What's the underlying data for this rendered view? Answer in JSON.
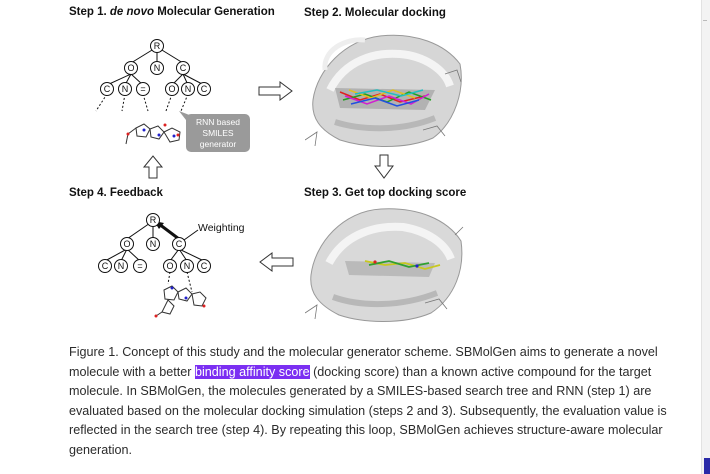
{
  "figure": {
    "step1": {
      "prefix": "Step 1. ",
      "italic": "de novo",
      "suffix": " Molecular Generation"
    },
    "step2": "Step 2. Molecular docking",
    "step3": "Step 3. Get top docking score",
    "step4": "Step 4. Feedback",
    "tree_nodes": {
      "root": "R",
      "o": "O",
      "n": "N",
      "c": "C",
      "eq": "="
    },
    "rnn_box": [
      "RNN based",
      "SMILES",
      "generator"
    ],
    "weighting": "Weighting"
  },
  "caption": {
    "before": "Figure 1. Concept of this study and the molecular generator scheme. SBMolGen aims to generate a novel molecule with a better ",
    "highlight": "binding affinity score",
    "after": " (docking score) than a known active compound for the target molecule. In SBMolGen, the molecules generated by a SMILES-based search tree and RNN (step 1) are evaluated based on the molecular docking simulation (steps 2 and 3). Subsequently, the evaluation value is reflected in the search tree (step 4). By repeating this loop, SBMolGen achieves structure-aware molecular generation."
  },
  "colors": {
    "highlight": "#7b2ff2",
    "scroll_thumb": "#2a2aa8",
    "rnn_box": "#9a9a9a"
  }
}
